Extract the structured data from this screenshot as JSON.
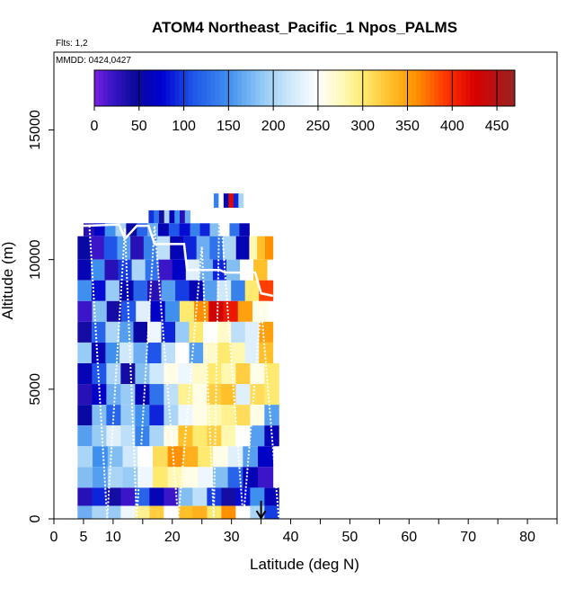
{
  "chart_data": {
    "type": "heatmap",
    "title": "ATOM4 Northeast_Pacific_1 Npos_PALMS",
    "subtitle_flights": "Flts: 1,2",
    "subtitle_dates": "MMDD: 0424,0427",
    "xlabel": "Latitude (deg N)",
    "ylabel": "Altitude (m)",
    "xlim": [
      0,
      85
    ],
    "ylim": [
      0,
      18000
    ],
    "xticks": [
      0,
      5,
      10,
      15,
      20,
      25,
      30,
      35,
      40,
      45,
      50,
      55,
      60,
      65,
      70,
      75,
      80,
      85
    ],
    "xtick_labels": [
      "0",
      "5",
      "10",
      "20",
      "30",
      "40",
      "50",
      "60",
      "70",
      "80"
    ],
    "xtick_label_values": [
      0,
      5,
      10,
      20,
      30,
      40,
      50,
      60,
      70,
      80
    ],
    "yticks": [
      0,
      5000,
      10000,
      15000
    ],
    "ytick_labels": [
      "0",
      "5000",
      "10000",
      "15000"
    ],
    "colorbar": {
      "min": 0,
      "max": 470,
      "tick_labels": [
        "0",
        "50",
        "100",
        "150",
        "200",
        "250",
        "300",
        "350",
        "400",
        "450"
      ],
      "tick_values": [
        0,
        50,
        100,
        150,
        200,
        250,
        300,
        350,
        400,
        450
      ],
      "stops": [
        [
          0,
          "#7a1fe0"
        ],
        [
          20,
          "#3a16c8"
        ],
        [
          45,
          "#0a0a9a"
        ],
        [
          75,
          "#0000d0"
        ],
        [
          110,
          "#1f55e8"
        ],
        [
          150,
          "#3f8fee"
        ],
        [
          185,
          "#8ec6f4"
        ],
        [
          215,
          "#c7e4fa"
        ],
        [
          250,
          "#ffffff"
        ],
        [
          280,
          "#fff8b0"
        ],
        [
          300,
          "#ffea70"
        ],
        [
          330,
          "#ffc02a"
        ],
        [
          360,
          "#ff9000"
        ],
        [
          395,
          "#ff3000"
        ],
        [
          425,
          "#d80000"
        ],
        [
          470,
          "#9a2323"
        ]
      ]
    },
    "bins": [
      {
        "alt": [
          11400,
          11900
        ],
        "lat": [
          16,
          23
        ],
        "values": [
          95,
          130,
          40,
          200,
          60,
          150,
          30,
          170
        ]
      },
      {
        "alt": [
          12000,
          12550
        ],
        "lat": [
          27,
          32
        ],
        "values": [
          140,
          250,
          60,
          420,
          90,
          200
        ]
      },
      {
        "alt": [
          10900,
          11400
        ],
        "lat": [
          5,
          23
        ],
        "values": [
          30,
          70,
          150,
          200,
          50,
          120,
          170,
          60,
          110,
          80
        ]
      },
      {
        "alt": [
          10900,
          11400
        ],
        "lat": [
          23,
          33
        ],
        "values": [
          140,
          90,
          180,
          250,
          130,
          60
        ]
      },
      {
        "alt": [
          10000,
          10900
        ],
        "lat": [
          4,
          33
        ],
        "values": [
          50,
          20,
          110,
          160,
          30,
          140,
          210,
          60,
          90,
          170,
          130,
          200,
          60
        ]
      },
      {
        "alt": [
          10000,
          10900
        ],
        "lat": [
          33,
          37
        ],
        "values": [
          280,
          330,
          360
        ]
      },
      {
        "alt": [
          9200,
          10000
        ],
        "lat": [
          4,
          36
        ],
        "values": [
          60,
          150,
          30,
          100,
          200,
          130,
          20,
          70,
          230,
          170,
          90,
          180,
          250,
          330
        ]
      },
      {
        "alt": [
          8400,
          9200
        ],
        "lat": [
          4,
          37
        ],
        "values": [
          150,
          80,
          190,
          60,
          120,
          30,
          160,
          100,
          60,
          160,
          220,
          140,
          300,
          390
        ]
      },
      {
        "alt": [
          7600,
          8400
        ],
        "lat": [
          4,
          36
        ],
        "values": [
          20,
          180,
          40,
          110,
          230,
          70,
          150,
          300,
          360,
          430,
          410,
          350,
          260
        ]
      },
      {
        "alt": [
          6800,
          7600
        ],
        "lat": [
          4,
          37
        ],
        "values": [
          40,
          120,
          200,
          160,
          50,
          240,
          90,
          190,
          300,
          250,
          270,
          210,
          230,
          350
        ]
      },
      {
        "alt": [
          6000,
          6800
        ],
        "lat": [
          4,
          37
        ],
        "values": [
          190,
          60,
          150,
          220,
          170,
          110,
          210,
          250,
          160,
          270,
          300,
          280,
          230,
          330
        ]
      },
      {
        "alt": [
          5200,
          6000
        ],
        "lat": [
          4,
          38
        ],
        "values": [
          60,
          110,
          200,
          40,
          180,
          220,
          260,
          240,
          270,
          300,
          280,
          320,
          260,
          300
        ]
      },
      {
        "alt": [
          4400,
          5200
        ],
        "lat": [
          4,
          38
        ],
        "values": [
          30,
          70,
          170,
          190,
          60,
          130,
          210,
          290,
          260,
          320,
          330,
          230,
          310,
          300
        ]
      },
      {
        "alt": [
          3600,
          4400
        ],
        "lat": [
          4,
          38
        ],
        "values": [
          50,
          180,
          120,
          190,
          150,
          90,
          200,
          240,
          260,
          280,
          290,
          310,
          260,
          160
        ]
      },
      {
        "alt": [
          2800,
          3600
        ],
        "lat": [
          4,
          38
        ],
        "values": [
          160,
          190,
          230,
          210,
          140,
          200,
          260,
          330,
          300,
          320,
          280,
          250,
          160,
          60
        ]
      },
      {
        "alt": [
          2000,
          2800
        ],
        "lat": [
          4,
          37
        ],
        "values": [
          200,
          150,
          180,
          220,
          250,
          310,
          360,
          340,
          300,
          260,
          230,
          160,
          70
        ]
      },
      {
        "alt": [
          1200,
          2000
        ],
        "lat": [
          4,
          37
        ],
        "values": [
          180,
          160,
          200,
          190,
          240,
          300,
          280,
          260,
          240,
          180,
          120,
          60,
          20
        ]
      },
      {
        "alt": [
          500,
          1200
        ],
        "lat": [
          4,
          38
        ],
        "values": [
          30,
          90,
          40,
          20,
          120,
          60,
          20,
          180,
          210,
          100,
          40,
          80,
          150,
          60
        ]
      },
      {
        "alt": [
          0,
          500
        ],
        "lat": [
          4,
          38
        ],
        "values": [
          170,
          200,
          190,
          240,
          290,
          320,
          250,
          330,
          340,
          300,
          360,
          250,
          200,
          100
        ]
      }
    ],
    "flight_track_descending": [
      [
        6,
        11300
      ],
      [
        9,
        0
      ],
      [
        12,
        11200
      ],
      [
        14,
        0
      ],
      [
        17,
        11300
      ],
      [
        21,
        0
      ],
      [
        25,
        10500
      ],
      [
        27,
        0
      ],
      [
        28,
        12400
      ],
      [
        30,
        6000
      ],
      [
        32,
        0
      ],
      [
        35,
        8200
      ],
      [
        38,
        0
      ]
    ],
    "flight_track_solid": [
      [
        5,
        11300
      ],
      [
        11,
        11350
      ],
      [
        12,
        10800
      ],
      [
        14,
        11300
      ],
      [
        16,
        11300
      ],
      [
        17,
        10600
      ],
      [
        22,
        10600
      ],
      [
        22.5,
        9600
      ],
      [
        28,
        9600
      ],
      [
        29,
        9500
      ],
      [
        34,
        9500
      ],
      [
        35,
        8700
      ],
      [
        37,
        8600
      ]
    ],
    "flight_track_descending_label": "",
    "arrow_marker": {
      "lat": 35,
      "alt_top": 700,
      "alt_bottom": 0
    }
  }
}
